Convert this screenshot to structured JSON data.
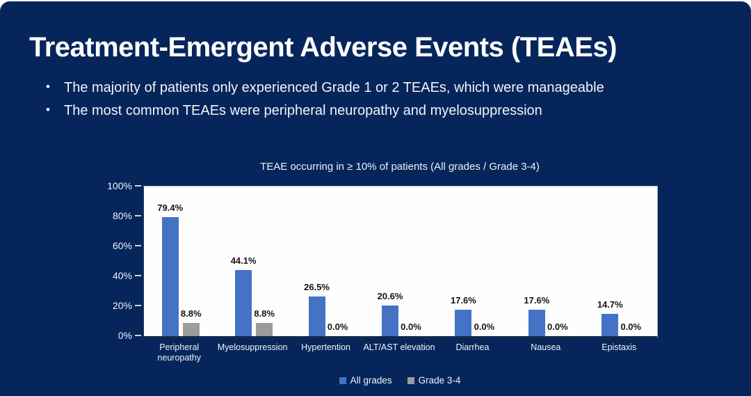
{
  "slide": {
    "title": "Treatment-Emergent Adverse Events (TEAEs)",
    "bullets": [
      "The majority of patients only experienced Grade 1 or 2 TEAEs, which were manageable",
      "The most common TEAEs were peripheral neuropathy and myelosuppression"
    ]
  },
  "chart_data": {
    "type": "bar",
    "title": "TEAE occurring in ≥ 10% of patients (All grades / Grade 3-4)",
    "categories": [
      "Peripheral neuropathy",
      "Myelosuppression",
      "Hypertention",
      "ALT/AST elevation",
      "Diarrhea",
      "Nausea",
      "Epistaxis"
    ],
    "series": [
      {
        "name": "All grades",
        "color": "#4472C4",
        "values": [
          79.4,
          44.1,
          26.5,
          20.6,
          17.6,
          17.6,
          14.7
        ]
      },
      {
        "name": "Grade 3-4",
        "color": "#9C9C9C",
        "values": [
          8.8,
          8.8,
          0.0,
          0.0,
          0.0,
          0.0,
          0.0
        ]
      }
    ],
    "value_label_format": "one-decimal-percent",
    "y_ticks": [
      0,
      20,
      40,
      60,
      80,
      100
    ],
    "y_tick_labels": [
      "0%",
      "20%",
      "40%",
      "60%",
      "80%",
      "100%"
    ],
    "ylim": [
      0,
      100
    ],
    "grid": false,
    "legend_position": "bottom",
    "plot_background": "#FEFEFE"
  },
  "colors": {
    "slide_background": "#06265B",
    "title_text": "#FFFFFF",
    "body_text": "#F2F4F8",
    "bar_blue": "#4472C4",
    "bar_gray": "#9C9C9C",
    "data_label": "#141414"
  }
}
